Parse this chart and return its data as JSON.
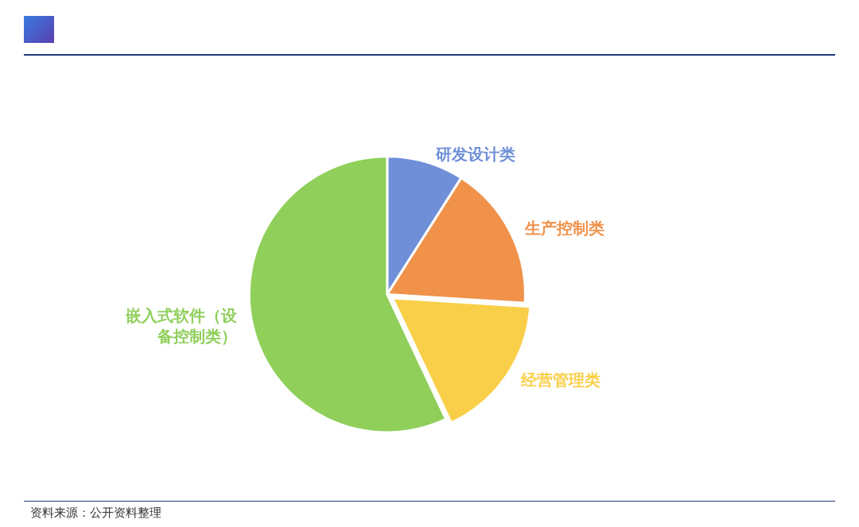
{
  "chart_data": {
    "type": "pie",
    "categories": [
      "研发设计类",
      "生产控制类",
      "经营管理类",
      "嵌入式软件（设备控制类）"
    ],
    "values": [
      9,
      17,
      17,
      57
    ],
    "colors": [
      "#6f8fd8",
      "#f0924a",
      "#f9cf4a",
      "#8fcf5a"
    ],
    "annotations": [
      "资料来源：公开资料整理"
    ]
  }
}
